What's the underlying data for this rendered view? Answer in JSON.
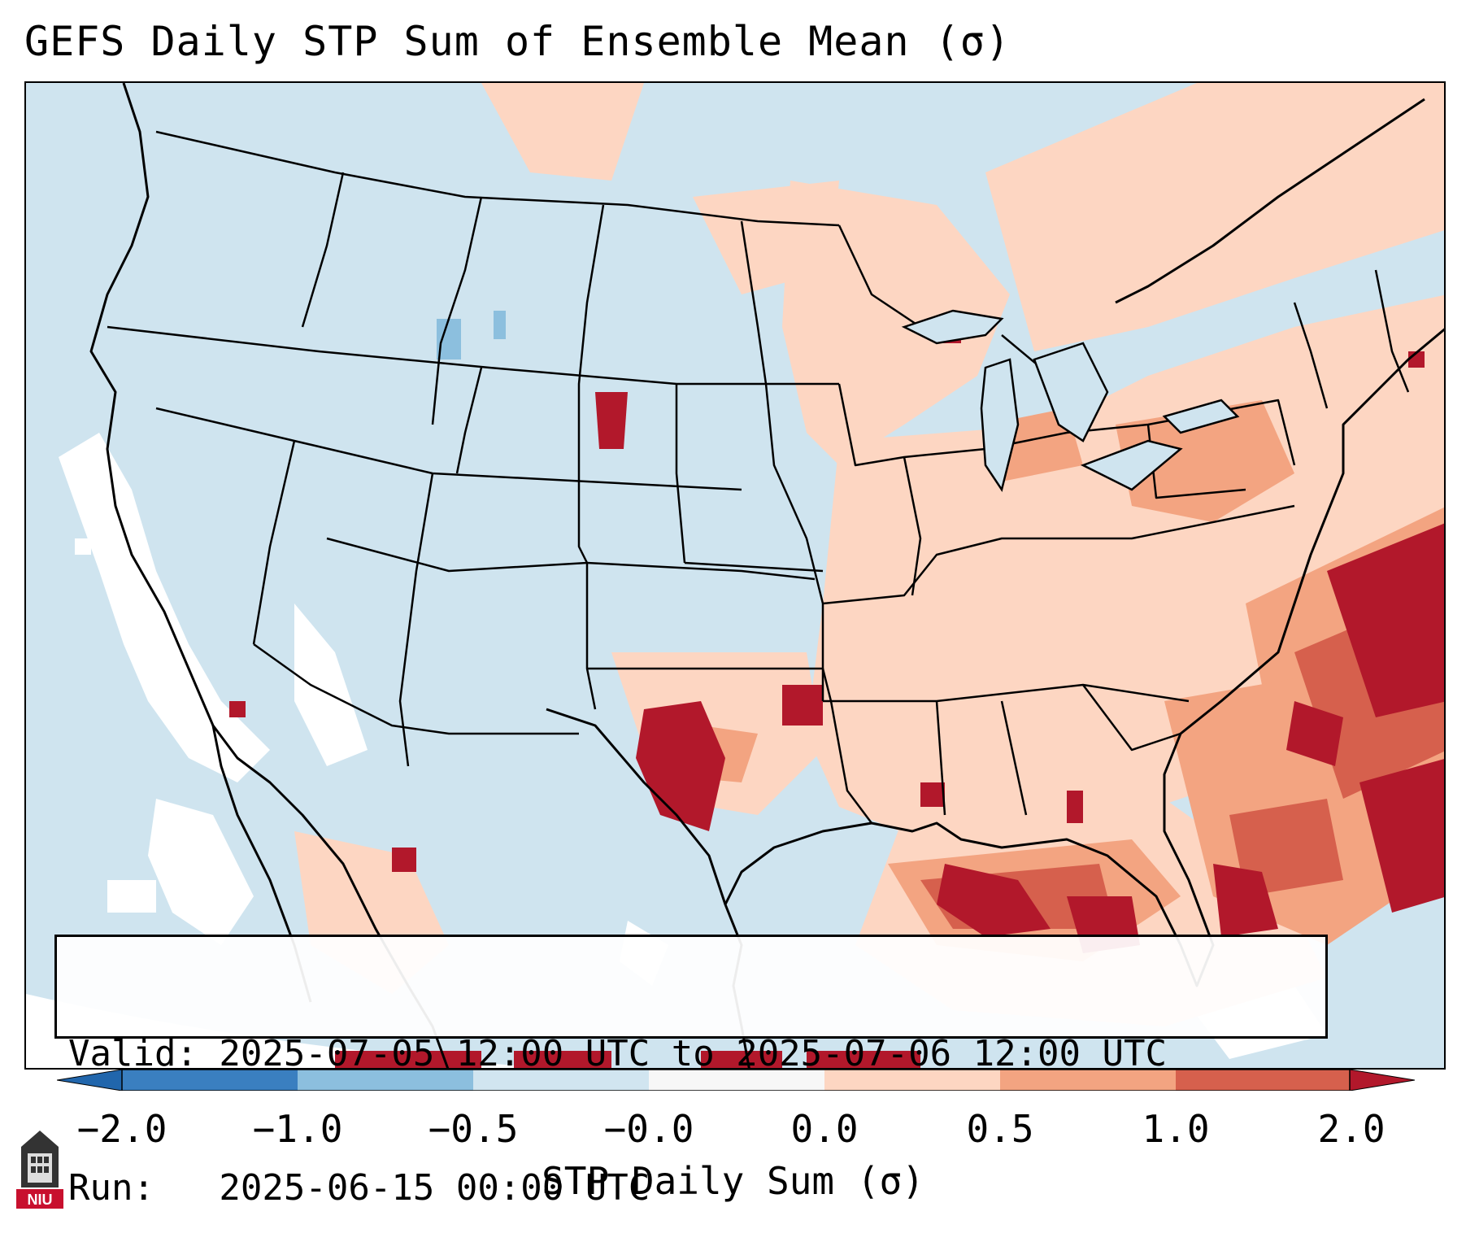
{
  "title": "GEFS Daily STP Sum of Ensemble Mean (σ)",
  "info": {
    "valid_line": "Valid: 2025-07-05 12:00 UTC to 2025-07-06 12:00 UTC",
    "run_line": "Run:   2025-06-15 00:00 UTC"
  },
  "colorbar": {
    "label": "STP Daily Sum (σ)",
    "ticks": [
      "−2.0",
      "−1.0",
      "−0.5",
      "−0.0",
      "0.0",
      "0.5",
      "1.0",
      "2.0"
    ],
    "colors": [
      "#3a7fc0",
      "#8cbfde",
      "#d1e5f0",
      "#f7f7f7",
      "#fdd6c2",
      "#f3a481",
      "#d6604d",
      "#b2182b"
    ],
    "extend": "both"
  },
  "map": {
    "projection": "Lambert conformal",
    "region": "Contiguous United States",
    "background_color": "#cfe4ef",
    "outside_domain_color": "#ffffff",
    "features": [
      "state-borders",
      "coastlines",
      "country-borders",
      "great-lakes"
    ]
  },
  "logo": {
    "text": "NIU",
    "icon": "university-tower-icon",
    "color": "#c8102e"
  }
}
